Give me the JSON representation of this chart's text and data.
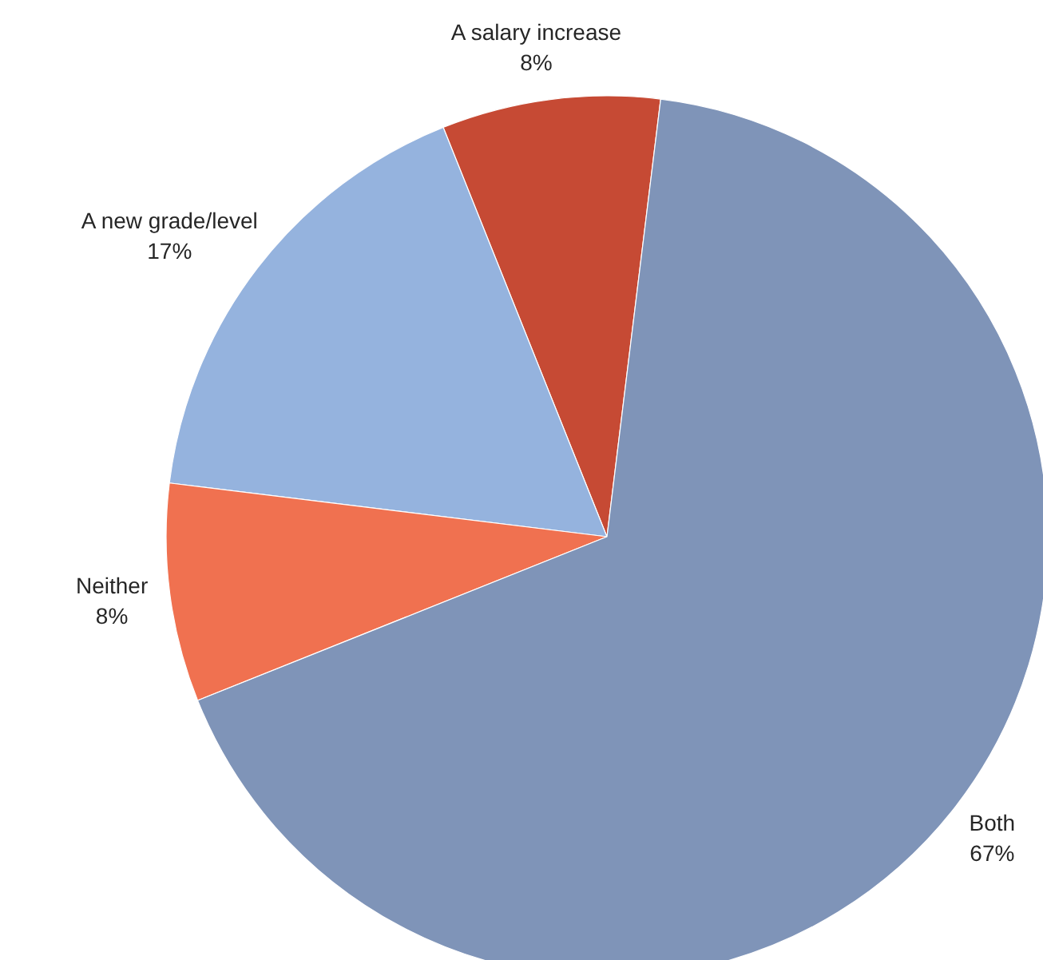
{
  "chart_data": {
    "type": "pie",
    "categories": [
      "A salary increase",
      "A new grade/level",
      "Neither",
      "Both"
    ],
    "values": [
      8,
      17,
      8,
      67
    ],
    "value_labels": [
      "8%",
      "17%",
      "8%",
      "67%"
    ],
    "colors": [
      "#c64a34",
      "#95b3de",
      "#f07150",
      "#7f94b8"
    ]
  }
}
